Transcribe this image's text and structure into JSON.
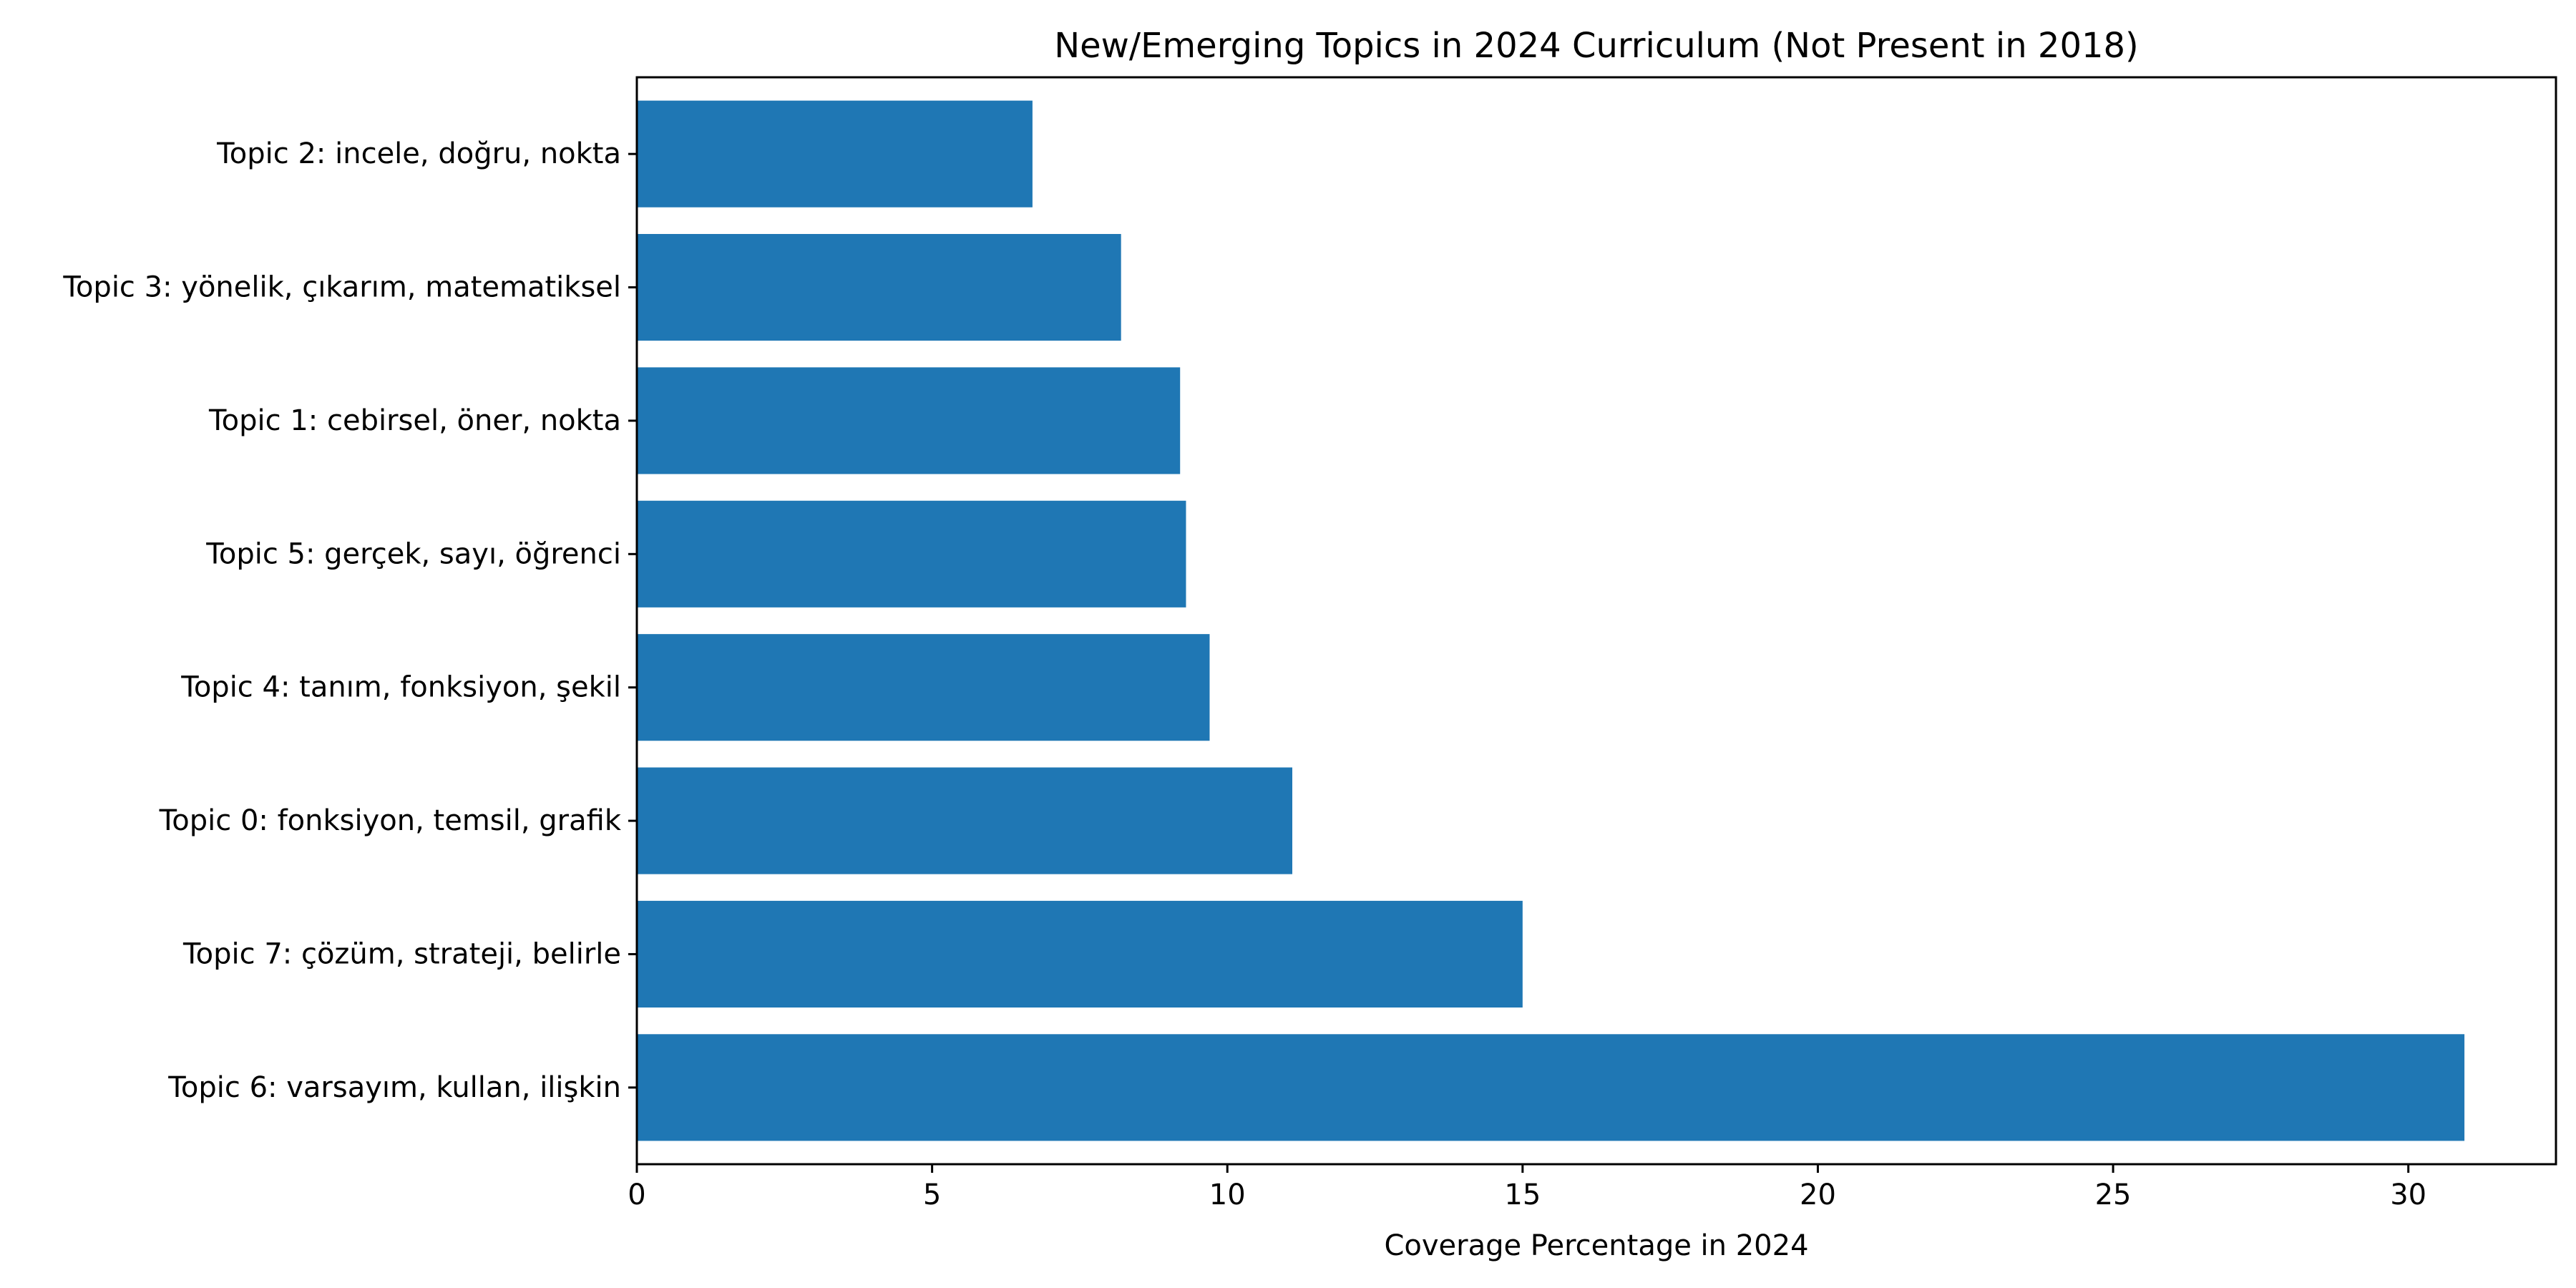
{
  "chart_data": {
    "type": "bar",
    "orientation": "horizontal",
    "title": "New/Emerging Topics in 2024 Curriculum (Not Present in 2018)",
    "xlabel": "Coverage Percentage in 2024",
    "ylabel": "",
    "categories": [
      "Topic 2: incele, doğru, nokta",
      "Topic 3: yönelik, çıkarım, matematiksel",
      "Topic 1: cebirsel, öner, nokta",
      "Topic 5: gerçek, sayı, öğrenci",
      "Topic 4: tanım, fonksiyon, şekil",
      "Topic 0: fonksiyon, temsil, grafik",
      "Topic 7: çözüm, strateji, belirle",
      "Topic 6: varsayım, kullan, ilişkin"
    ],
    "values": [
      6.7,
      8.2,
      9.2,
      9.3,
      9.7,
      11.1,
      15.0,
      30.95
    ],
    "xlim": [
      0,
      32.5
    ],
    "xticks": [
      0,
      5,
      10,
      15,
      20,
      25,
      30
    ],
    "grid": false,
    "bar_color": "#1f77b4"
  }
}
